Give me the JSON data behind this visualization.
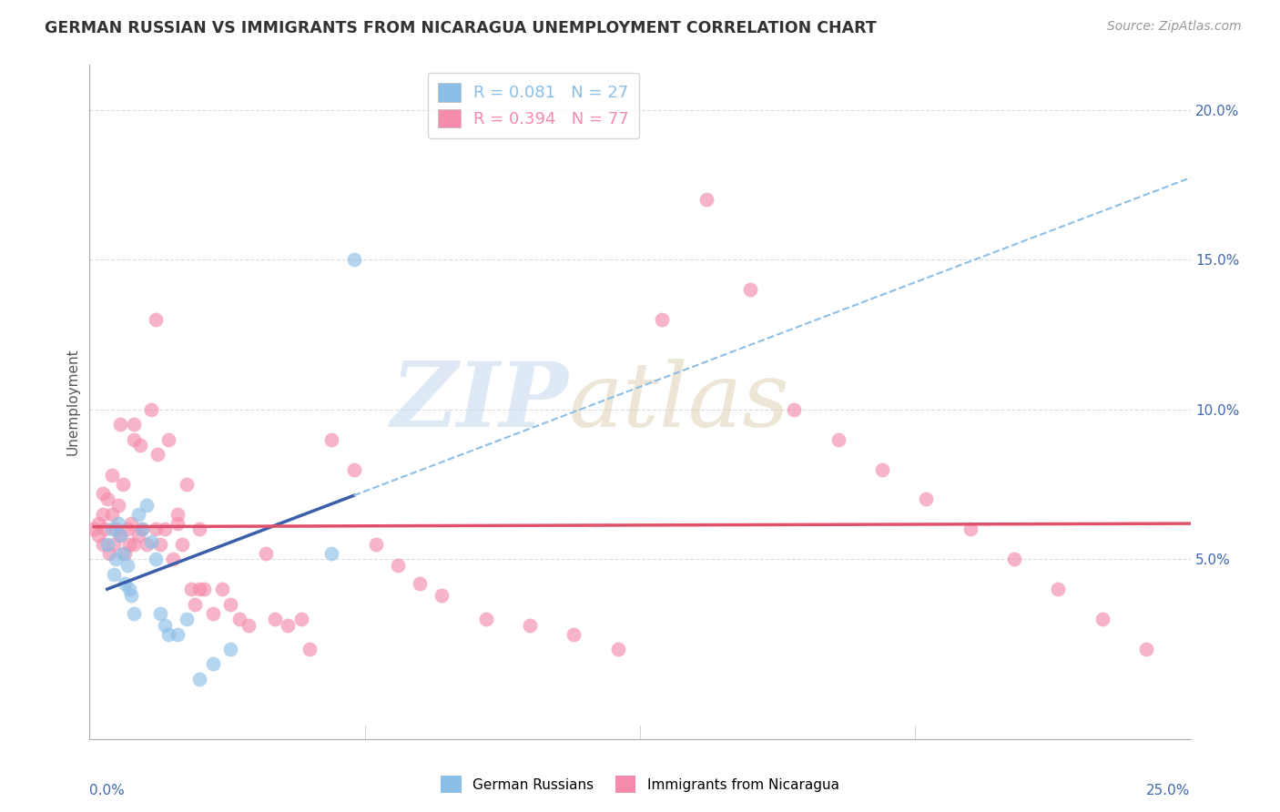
{
  "title": "GERMAN RUSSIAN VS IMMIGRANTS FROM NICARAGUA UNEMPLOYMENT CORRELATION CHART",
  "source": "Source: ZipAtlas.com",
  "ylabel": "Unemployment",
  "right_yticks": [
    "20.0%",
    "15.0%",
    "10.0%",
    "5.0%"
  ],
  "right_ytick_vals": [
    20.0,
    15.0,
    10.0,
    5.0
  ],
  "xlim": [
    0.0,
    25.0
  ],
  "ylim": [
    -1.0,
    21.5
  ],
  "watermark_text": "ZIP",
  "watermark_text2": "atlas",
  "legend_r1": "R = 0.081   N = 27",
  "legend_r2": "R = 0.394   N = 77",
  "legend_color1": "#8BBFE8",
  "legend_color2": "#F48BAB",
  "gr_color": "#8BBFE8",
  "nic_color": "#F48BAB",
  "gr_line_color": "#3A5FA8",
  "nic_line_color": "#E0506A",
  "background_color": "#FFFFFF",
  "grid_color": "#DDDDDD",
  "gr_x": [
    0.4,
    0.5,
    0.55,
    0.6,
    0.65,
    0.7,
    0.75,
    0.8,
    0.85,
    0.9,
    0.95,
    1.0,
    1.1,
    1.2,
    1.3,
    1.4,
    1.5,
    1.6,
    1.7,
    1.8,
    2.0,
    2.2,
    2.5,
    2.8,
    3.2,
    5.5,
    6.0
  ],
  "gr_y": [
    5.5,
    6.0,
    4.5,
    5.0,
    6.2,
    5.8,
    5.2,
    4.2,
    4.8,
    4.0,
    3.8,
    3.2,
    6.5,
    6.0,
    6.8,
    5.6,
    5.0,
    3.2,
    2.8,
    2.5,
    2.5,
    3.0,
    1.0,
    1.5,
    2.0,
    5.2,
    15.0
  ],
  "nic_x": [
    0.1,
    0.2,
    0.2,
    0.3,
    0.3,
    0.35,
    0.4,
    0.45,
    0.5,
    0.55,
    0.6,
    0.65,
    0.7,
    0.75,
    0.8,
    0.85,
    0.9,
    0.95,
    1.0,
    1.0,
    1.1,
    1.15,
    1.2,
    1.3,
    1.4,
    1.5,
    1.55,
    1.6,
    1.7,
    1.8,
    1.9,
    2.0,
    2.1,
    2.2,
    2.3,
    2.4,
    2.5,
    2.6,
    2.8,
    3.0,
    3.2,
    3.4,
    3.6,
    4.0,
    4.2,
    4.5,
    4.8,
    5.0,
    5.5,
    6.0,
    6.5,
    7.0,
    7.5,
    8.0,
    9.0,
    10.0,
    11.0,
    12.0,
    13.0,
    14.0,
    15.0,
    16.0,
    17.0,
    18.0,
    19.0,
    20.0,
    21.0,
    22.0,
    23.0,
    24.0,
    0.3,
    0.5,
    0.7,
    1.0,
    1.5,
    2.0,
    2.5
  ],
  "nic_y": [
    6.0,
    5.8,
    6.2,
    5.5,
    6.5,
    6.0,
    7.0,
    5.2,
    6.5,
    5.5,
    6.0,
    6.8,
    5.8,
    7.5,
    5.2,
    6.0,
    5.5,
    6.2,
    5.5,
    9.0,
    5.8,
    8.8,
    6.0,
    5.5,
    10.0,
    6.0,
    8.5,
    5.5,
    6.0,
    9.0,
    5.0,
    6.2,
    5.5,
    7.5,
    4.0,
    3.5,
    4.0,
    4.0,
    3.2,
    4.0,
    3.5,
    3.0,
    2.8,
    5.2,
    3.0,
    2.8,
    3.0,
    2.0,
    9.0,
    8.0,
    5.5,
    4.8,
    4.2,
    3.8,
    3.0,
    2.8,
    2.5,
    2.0,
    13.0,
    17.0,
    14.0,
    10.0,
    9.0,
    8.0,
    7.0,
    6.0,
    5.0,
    4.0,
    3.0,
    2.0,
    7.2,
    7.8,
    9.5,
    9.5,
    13.0,
    6.5,
    6.0
  ]
}
